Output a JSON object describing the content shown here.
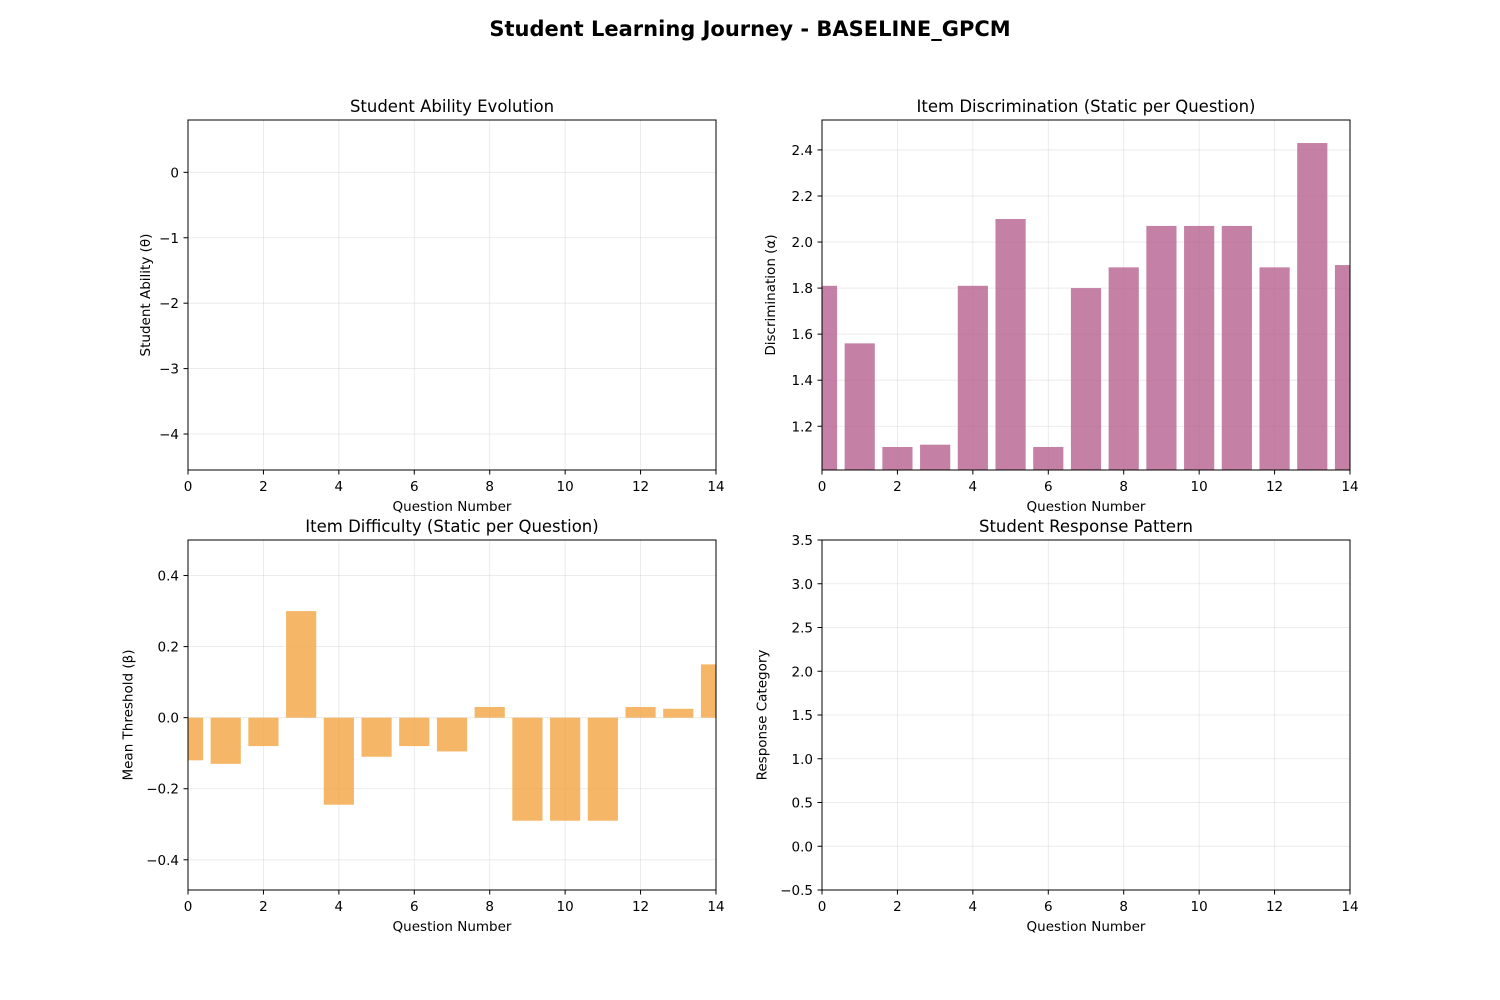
{
  "figure": {
    "suptitle": "Student Learning Journey - BASELINE_GPCM"
  },
  "chart_data": [
    {
      "type": "line",
      "title": "Student Ability Evolution",
      "xlabel": "Question Number",
      "ylabel": "Student Ability (θ)",
      "xlim": [
        0,
        14
      ],
      "ylim": [
        -4.55,
        0.8
      ],
      "xticks": [
        0,
        2,
        4,
        6,
        8,
        10,
        12,
        14
      ],
      "yticks": [
        0,
        -1,
        -2,
        -3,
        -4
      ],
      "grid": true,
      "series": []
    },
    {
      "type": "bar",
      "title": "Item Discrimination (Static per Question)",
      "xlabel": "Question Number",
      "ylabel": "Discrimination (α)",
      "xlim": [
        0,
        14
      ],
      "ylim": [
        1.01,
        2.53
      ],
      "xticks": [
        0,
        2,
        4,
        6,
        8,
        10,
        12,
        14
      ],
      "yticks": [
        1.2,
        1.4,
        1.6,
        1.8,
        2.0,
        2.2,
        2.4
      ],
      "grid": true,
      "color": "#b5628e",
      "x": [
        0,
        1,
        2,
        3,
        4,
        5,
        6,
        7,
        8,
        9,
        10,
        11,
        12,
        13,
        14
      ],
      "values": [
        1.81,
        1.56,
        1.11,
        1.12,
        1.81,
        2.1,
        1.11,
        1.8,
        1.89,
        2.07,
        2.07,
        2.07,
        1.89,
        2.43,
        1.9
      ]
    },
    {
      "type": "bar",
      "title": "Item Difficulty (Static per Question)",
      "xlabel": "Question Number",
      "ylabel": "Mean Threshold (β)",
      "xlim": [
        0,
        14
      ],
      "ylim": [
        -0.485,
        0.5
      ],
      "xticks": [
        0,
        2,
        4,
        6,
        8,
        10,
        12,
        14
      ],
      "yticks": [
        0.4,
        0.2,
        0.0,
        -0.2,
        -0.4
      ],
      "grid": true,
      "color": "#f2a541",
      "x": [
        0,
        1,
        2,
        3,
        4,
        5,
        6,
        7,
        8,
        9,
        10,
        11,
        12,
        13,
        14
      ],
      "values": [
        -0.12,
        -0.13,
        -0.08,
        0.3,
        -0.245,
        -0.11,
        -0.08,
        -0.095,
        0.03,
        -0.29,
        -0.29,
        -0.29,
        0.03,
        0.025,
        0.15
      ]
    },
    {
      "type": "scatter",
      "title": "Student Response Pattern",
      "xlabel": "Question Number",
      "ylabel": "Response Category",
      "xlim": [
        0,
        14
      ],
      "ylim": [
        -0.5,
        3.5
      ],
      "xticks": [
        0,
        2,
        4,
        6,
        8,
        10,
        12,
        14
      ],
      "yticks": [
        3.5,
        3.0,
        2.5,
        2.0,
        1.5,
        1.0,
        0.5,
        0.0,
        -0.5
      ],
      "grid": true,
      "series": []
    }
  ]
}
